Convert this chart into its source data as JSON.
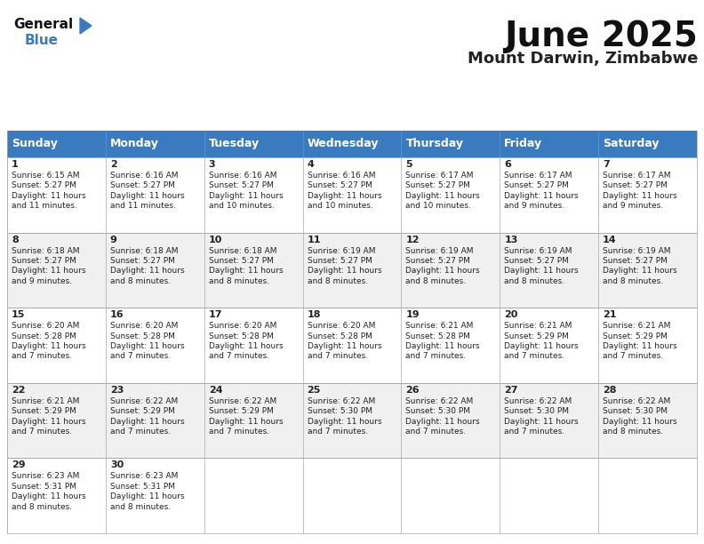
{
  "title": "June 2025",
  "subtitle": "Mount Darwin, Zimbabwe",
  "header_color": "#3a7bbf",
  "header_text_color": "#ffffff",
  "cell_bg_white": "#ffffff",
  "cell_bg_gray": "#f0f0f0",
  "border_color": "#aaaaaa",
  "text_color": "#222222",
  "days_of_week": [
    "Sunday",
    "Monday",
    "Tuesday",
    "Wednesday",
    "Thursday",
    "Friday",
    "Saturday"
  ],
  "calendar": [
    [
      {
        "day": 1,
        "sunrise": "6:15 AM",
        "sunset": "5:27 PM",
        "daylight_h": "11 hours",
        "daylight_m": "and 11 minutes."
      },
      {
        "day": 2,
        "sunrise": "6:16 AM",
        "sunset": "5:27 PM",
        "daylight_h": "11 hours",
        "daylight_m": "and 11 minutes."
      },
      {
        "day": 3,
        "sunrise": "6:16 AM",
        "sunset": "5:27 PM",
        "daylight_h": "11 hours",
        "daylight_m": "and 10 minutes."
      },
      {
        "day": 4,
        "sunrise": "6:16 AM",
        "sunset": "5:27 PM",
        "daylight_h": "11 hours",
        "daylight_m": "and 10 minutes."
      },
      {
        "day": 5,
        "sunrise": "6:17 AM",
        "sunset": "5:27 PM",
        "daylight_h": "11 hours",
        "daylight_m": "and 10 minutes."
      },
      {
        "day": 6,
        "sunrise": "6:17 AM",
        "sunset": "5:27 PM",
        "daylight_h": "11 hours",
        "daylight_m": "and 9 minutes."
      },
      {
        "day": 7,
        "sunrise": "6:17 AM",
        "sunset": "5:27 PM",
        "daylight_h": "11 hours",
        "daylight_m": "and 9 minutes."
      }
    ],
    [
      {
        "day": 8,
        "sunrise": "6:18 AM",
        "sunset": "5:27 PM",
        "daylight_h": "11 hours",
        "daylight_m": "and 9 minutes."
      },
      {
        "day": 9,
        "sunrise": "6:18 AM",
        "sunset": "5:27 PM",
        "daylight_h": "11 hours",
        "daylight_m": "and 8 minutes."
      },
      {
        "day": 10,
        "sunrise": "6:18 AM",
        "sunset": "5:27 PM",
        "daylight_h": "11 hours",
        "daylight_m": "and 8 minutes."
      },
      {
        "day": 11,
        "sunrise": "6:19 AM",
        "sunset": "5:27 PM",
        "daylight_h": "11 hours",
        "daylight_m": "and 8 minutes."
      },
      {
        "day": 12,
        "sunrise": "6:19 AM",
        "sunset": "5:27 PM",
        "daylight_h": "11 hours",
        "daylight_m": "and 8 minutes."
      },
      {
        "day": 13,
        "sunrise": "6:19 AM",
        "sunset": "5:27 PM",
        "daylight_h": "11 hours",
        "daylight_m": "and 8 minutes."
      },
      {
        "day": 14,
        "sunrise": "6:19 AM",
        "sunset": "5:27 PM",
        "daylight_h": "11 hours",
        "daylight_m": "and 8 minutes."
      }
    ],
    [
      {
        "day": 15,
        "sunrise": "6:20 AM",
        "sunset": "5:28 PM",
        "daylight_h": "11 hours",
        "daylight_m": "and 7 minutes."
      },
      {
        "day": 16,
        "sunrise": "6:20 AM",
        "sunset": "5:28 PM",
        "daylight_h": "11 hours",
        "daylight_m": "and 7 minutes."
      },
      {
        "day": 17,
        "sunrise": "6:20 AM",
        "sunset": "5:28 PM",
        "daylight_h": "11 hours",
        "daylight_m": "and 7 minutes."
      },
      {
        "day": 18,
        "sunrise": "6:20 AM",
        "sunset": "5:28 PM",
        "daylight_h": "11 hours",
        "daylight_m": "and 7 minutes."
      },
      {
        "day": 19,
        "sunrise": "6:21 AM",
        "sunset": "5:28 PM",
        "daylight_h": "11 hours",
        "daylight_m": "and 7 minutes."
      },
      {
        "day": 20,
        "sunrise": "6:21 AM",
        "sunset": "5:29 PM",
        "daylight_h": "11 hours",
        "daylight_m": "and 7 minutes."
      },
      {
        "day": 21,
        "sunrise": "6:21 AM",
        "sunset": "5:29 PM",
        "daylight_h": "11 hours",
        "daylight_m": "and 7 minutes."
      }
    ],
    [
      {
        "day": 22,
        "sunrise": "6:21 AM",
        "sunset": "5:29 PM",
        "daylight_h": "11 hours",
        "daylight_m": "and 7 minutes."
      },
      {
        "day": 23,
        "sunrise": "6:22 AM",
        "sunset": "5:29 PM",
        "daylight_h": "11 hours",
        "daylight_m": "and 7 minutes."
      },
      {
        "day": 24,
        "sunrise": "6:22 AM",
        "sunset": "5:29 PM",
        "daylight_h": "11 hours",
        "daylight_m": "and 7 minutes."
      },
      {
        "day": 25,
        "sunrise": "6:22 AM",
        "sunset": "5:30 PM",
        "daylight_h": "11 hours",
        "daylight_m": "and 7 minutes."
      },
      {
        "day": 26,
        "sunrise": "6:22 AM",
        "sunset": "5:30 PM",
        "daylight_h": "11 hours",
        "daylight_m": "and 7 minutes."
      },
      {
        "day": 27,
        "sunrise": "6:22 AM",
        "sunset": "5:30 PM",
        "daylight_h": "11 hours",
        "daylight_m": "and 7 minutes."
      },
      {
        "day": 28,
        "sunrise": "6:22 AM",
        "sunset": "5:30 PM",
        "daylight_h": "11 hours",
        "daylight_m": "and 8 minutes."
      }
    ],
    [
      {
        "day": 29,
        "sunrise": "6:23 AM",
        "sunset": "5:31 PM",
        "daylight_h": "11 hours",
        "daylight_m": "and 8 minutes."
      },
      {
        "day": 30,
        "sunrise": "6:23 AM",
        "sunset": "5:31 PM",
        "daylight_h": "11 hours",
        "daylight_m": "and 8 minutes."
      },
      null,
      null,
      null,
      null,
      null
    ]
  ],
  "logo_general_color": "#111111",
  "logo_blue_color": "#3a7bbf",
  "logo_triangle_color": "#3a7bbf",
  "title_fontsize": 28,
  "subtitle_fontsize": 13,
  "header_fontsize": 9,
  "day_num_fontsize": 8,
  "cell_text_fontsize": 6.5
}
